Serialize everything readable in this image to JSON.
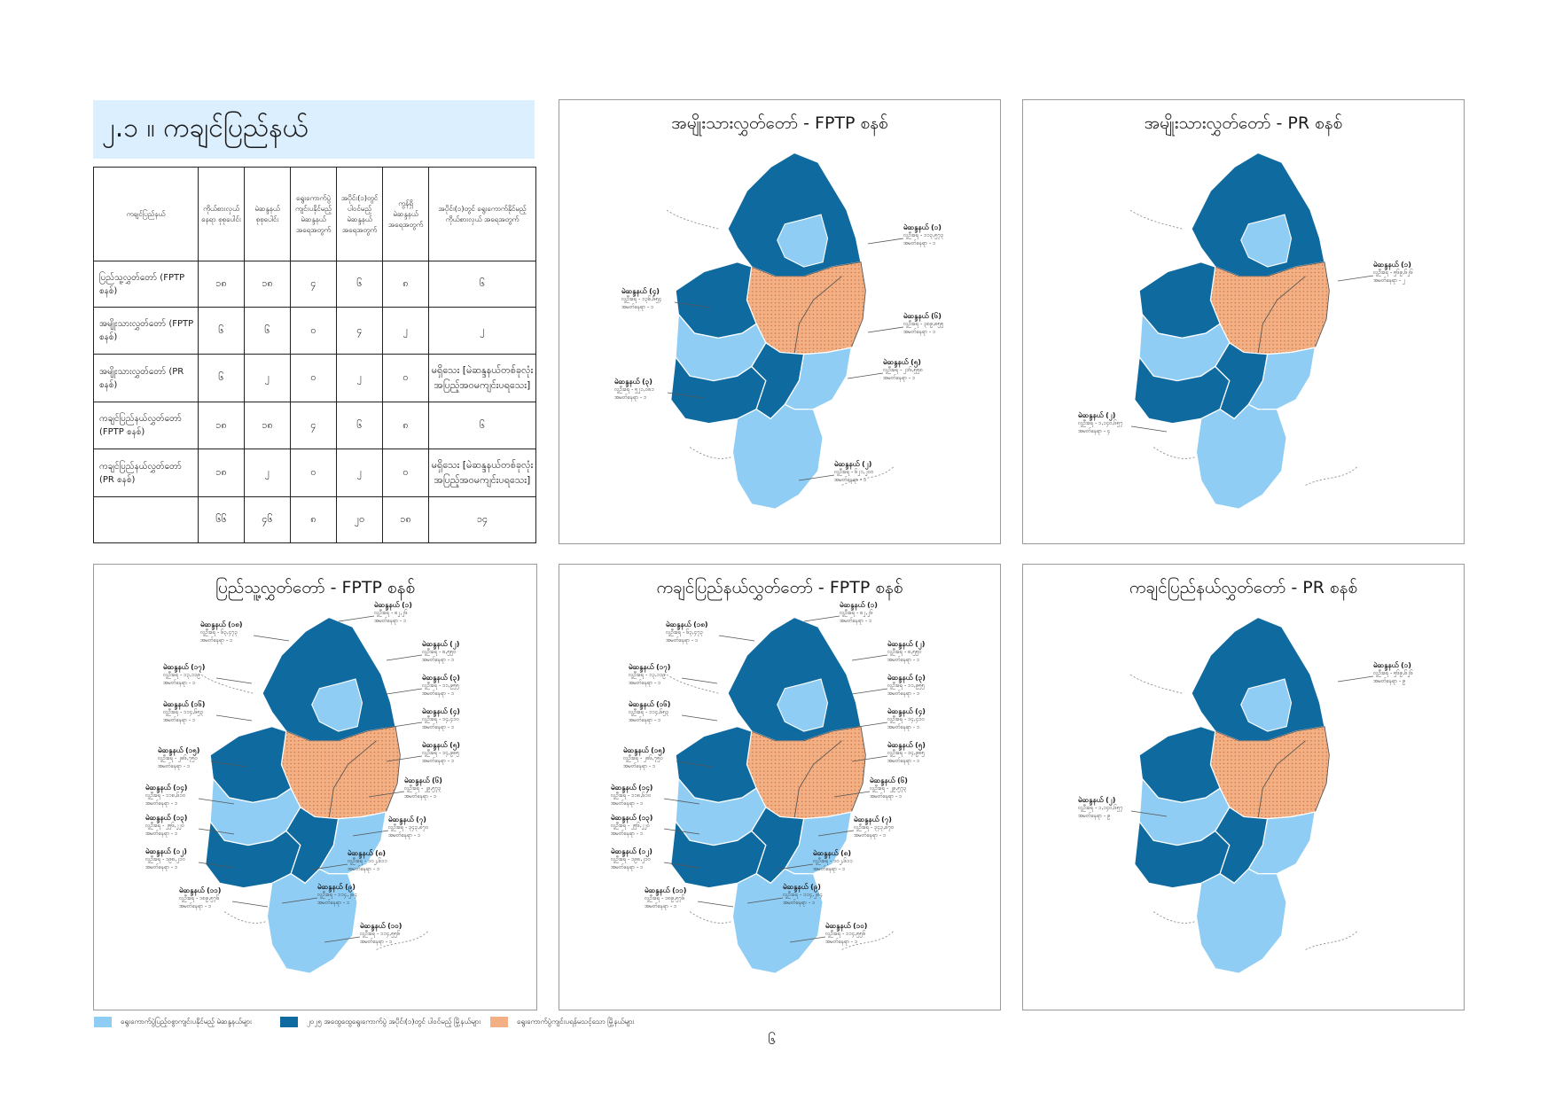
{
  "header": {
    "title": "၂.၁ ။ ကချင်ပြည်နယ်"
  },
  "table": {
    "columns": [
      "ကချင်ပြည်နယ်",
      "ကိုယ်စားလှယ် နေရာ စုစုပေါင်း",
      "မဲဆန္ဒနယ် စုစုပေါင်း",
      "ရွေးကောက်ပွဲ ကျင်းပနိုင်မည့် မဲဆန္ဒနယ် အရေအတွက်",
      "အပိုင်း(၁)တွင် ပါဝင်မည့် မဲဆန္ဒနယ် အရေအတွက်",
      "ကွန်ရှိ မဲဆန္ဒနယ် အရေအတွက်",
      "အပိုင်း(၁)တွင် ရွေးကောက်နိုင်မည့် ကိုယ်စားလှယ် အရေအတွက်"
    ],
    "rows": [
      {
        "label": "ပြည်သူ့လွှတ်တော် (FPTP စနစ်)",
        "cells": [
          "၁၈",
          "၁၈",
          "၄",
          "၆",
          "၈",
          "၆"
        ]
      },
      {
        "label": "အမျိုးသားလွှတ်တော် (FPTP စနစ်)",
        "cells": [
          "၆",
          "၆",
          "၀",
          "၄",
          "၂",
          "၂"
        ]
      },
      {
        "label": "အမျိုးသားလွှတ်တော် (PR စနစ်)",
        "cells": [
          "၆",
          "၂",
          "၀",
          "၂",
          "၀",
          "မရှိသေး [မဲဆန္ဒနယ်တစ်ခုလုံး အပြည့်အဝမကျင်းပရသေး]"
        ]
      },
      {
        "label": "ကချင်ပြည်နယ်လွှတ်တော် (FPTP စနစ်)",
        "cells": [
          "၁၈",
          "၁၈",
          "၄",
          "၆",
          "၈",
          "၆"
        ]
      },
      {
        "label": "ကချင်ပြည်နယ်လွှတ်တော် (PR စနစ်)",
        "cells": [
          "၁၈",
          "၂",
          "၀",
          "၂",
          "၀",
          "မရှိသေး [မဲဆန္ဒနယ်တစ်ခုလုံး အပြည့်အဝမကျင်းပရသေး]"
        ]
      },
      {
        "label": "",
        "cells": [
          "၆၆",
          "၄၆",
          "၈",
          "၂၀",
          "၁၈",
          "၁၄"
        ]
      }
    ]
  },
  "colors": {
    "light": "#8fcdf4",
    "dark": "#0f6aa0",
    "orange": "#f2b084",
    "title_bg": "#dcefff"
  },
  "panels": [
    {
      "title": "အမျိုးသားလွှတ်တော် - FPTP စနစ်",
      "labels": [
        {
          "name": "မဲဆန္ဒနယ် (၁)",
          "l2": "လူဦးရေ - ၁၁၃,၅၇၃",
          "l3": "အမတ်နေရာ - ၁"
        },
        {
          "name": "မဲဆန္ဒနယ် (၄)",
          "l2": "လူဦးရေ - ၁၃၆,၆၅၄",
          "l3": "အမတ်နေရာ - ၁"
        },
        {
          "name": "မဲဆန္ဒနယ် (၆)",
          "l2": "လူဦးရေ - ၃၈၉,၈၅၅",
          "l3": "အမတ်နေရာ - ၁"
        },
        {
          "name": "မဲဆန္ဒနယ် (၅)",
          "l2": "လူဦးရေ - ၂၁၆,၅၅၈",
          "l3": "အမတ်နေရာ - ၁"
        },
        {
          "name": "မဲဆန္ဒနယ် (၃)",
          "l2": "လူဦးရေ - ၅၂၁,၀၈၁",
          "l3": "အမတ်နေရာ - ၁"
        },
        {
          "name": "မဲဆန္ဒနယ် (၂)",
          "l2": "လူဦးရေ - ၆၂၁,၂၀၀",
          "l3": "အမတ်နေရာ - ၁"
        }
      ]
    },
    {
      "title": "အမျိုးသားလွှတ်တော် - PR စနစ်",
      "labels": [
        {
          "name": "မဲဆန္ဒနယ် (၁)",
          "l2": "လူဦးရေ - ၅၆၉,၆၂၆",
          "l3": "အမတ်နေရာ - ၂"
        },
        {
          "name": "မဲဆန္ဒနယ် (၂)",
          "l2": "လူဦးရေ - ၁,၁၄၀,၆၅၇",
          "l3": "အမတ်နေရာ - ၄"
        }
      ]
    },
    {
      "title": "ပြည်သူ့လွှတ်တော် - FPTP စနစ်",
      "labels": [
        {
          "name": "မဲဆန္ဒနယ် (၁)",
          "l2": "လူဦးရေ - ၈၂,၂၆",
          "l3": "အမတ်နေရာ - ၁"
        },
        {
          "name": "မဲဆန္ဒနယ် (၁၈)",
          "l2": "လူဦးရေ - ၆၃,၄၇၃",
          "l3": "အမတ်နေရာ - ၁"
        },
        {
          "name": "မဲဆန္ဒနယ် (၂)",
          "l2": "လူဦးရေ - ၈,၅၅၀",
          "l3": "အမတ်နေရာ - ၁"
        },
        {
          "name": "မဲဆန္ဒနယ် (၁၇)",
          "l2": "လူဦးရေ - ၁၃,၁၁၉",
          "l3": "အမတ်နေရာ - ၁"
        },
        {
          "name": "မဲဆန္ဒနယ် (၃)",
          "l2": "လူဦးရေ - ၁၁,၉၅၅",
          "l3": "အမတ်နေရာ - ၁"
        },
        {
          "name": "မဲဆန္ဒနယ် (၁၆)",
          "l2": "လူဦးရေ - ၁၁၄,၆၅၃",
          "l3": "အမတ်နေရာ - ၁"
        },
        {
          "name": "မဲဆန္ဒနယ် (၄)",
          "l2": "လူဦးရေ - ၁၄,၄၁၀",
          "l3": "အမတ်နေရာ - ၁"
        },
        {
          "name": "မဲဆန္ဒနယ် (၁၅)",
          "l2": "လူဦးရေ - ၂၈၆,၇၅၀",
          "l3": "အမတ်နေရာ - ၁"
        },
        {
          "name": "မဲဆန္ဒနယ် (၅)",
          "l2": "လူဦးရေ - ၁၄,၉၈၅",
          "l3": "အမတ်နေရာ - ၁"
        },
        {
          "name": "မဲဆန္ဒနယ် (၁၄)",
          "l2": "လူဦးရေ - ၁၁၈,၆၁၀",
          "l3": "အမတ်နေရာ - ၁"
        },
        {
          "name": "မဲဆန္ဒနယ် (၆)",
          "l2": "လူဦးရေ - ၂၉,၅၇၃",
          "l3": "အမတ်နေရာ - ၁"
        },
        {
          "name": "မဲဆန္ဒနယ် (၁၃)",
          "l2": "လူဦးရေ - ၂၅၆,၂၂၀",
          "l3": "အမတ်နေရာ - ၁"
        },
        {
          "name": "မဲဆန္ဒနယ် (၇)",
          "l2": "လူဦးရေ - ၃၄၃,၈၇၀",
          "l3": "အမတ်နေရာ - ၁"
        },
        {
          "name": "မဲဆန္ဒနယ် (၁၂)",
          "l2": "လူဦးရေ - ၁၉၈,၂၁၀",
          "l3": "အမတ်နေရာ - ၁"
        },
        {
          "name": "မဲဆန္ဒနယ် (၈)",
          "l2": "လူဦးရေ - ၁၀၂,၆၁၁",
          "l3": "အမတ်နေရာ - ၁"
        },
        {
          "name": "မဲဆန္ဒနယ် (၉)",
          "l2": "လူဦးရေ - ၁၁၄,၂၈၄",
          "l3": "အမတ်နေရာ - ၁"
        },
        {
          "name": "မဲဆန္ဒနယ် (၁၁)",
          "l2": "လူဦးရေ - ၁၈၉,၅၇၆",
          "l3": "အမတ်နေရာ - ၁"
        },
        {
          "name": "မဲဆန္ဒနယ် (၁၀)",
          "l2": "လူဦးရေ - ၁၁၄,၅၅၆",
          "l3": "အမတ်နေရာ - ၁"
        }
      ]
    },
    {
      "title": "ကချင်ပြည်နယ်လွှတ်တော် - FPTP စနစ်",
      "labels": [
        {
          "name": "မဲဆန္ဒနယ် (၁)",
          "l2": "လူဦးရေ - ၈၂,၂၆",
          "l3": "အမတ်နေရာ - ၁"
        },
        {
          "name": "မဲဆန္ဒနယ် (၁၈)",
          "l2": "လူဦးရေ - ၆၃,၄၇၃",
          "l3": "အမတ်နေရာ - ၁"
        },
        {
          "name": "မဲဆန္ဒနယ် (၂)",
          "l2": "လူဦးရေ - ၈,၅၅၀",
          "l3": "အမတ်နေရာ - ၁"
        },
        {
          "name": "မဲဆန္ဒနယ် (၁၇)",
          "l2": "လူဦးရေ - ၁၃,၁၁၉",
          "l3": "အမတ်နေရာ - ၁"
        },
        {
          "name": "မဲဆန္ဒနယ် (၃)",
          "l2": "လူဦးရေ - ၁၁,၉၅၅",
          "l3": "အမတ်နေရာ - ၁"
        },
        {
          "name": "မဲဆန္ဒနယ် (၁၆)",
          "l2": "လူဦးရေ - ၁၁၄,၆၅၃",
          "l3": "အမတ်နေရာ - ၁"
        },
        {
          "name": "မဲဆန္ဒနယ် (၄)",
          "l2": "လူဦးရေ - ၁၄,၄၁၀",
          "l3": "အမတ်နေရာ - ၁"
        },
        {
          "name": "မဲဆန္ဒနယ် (၁၅)",
          "l2": "လူဦးရေ - ၂၈၆,၇၅၀",
          "l3": "အမတ်နေရာ - ၁"
        },
        {
          "name": "မဲဆန္ဒနယ် (၅)",
          "l2": "လူဦးရေ - ၁၄,၉၈၅",
          "l3": "အမတ်နေရာ - ၁"
        },
        {
          "name": "မဲဆန္ဒနယ် (၁၄)",
          "l2": "လူဦးရေ - ၁၁၈,၆၁၀",
          "l3": "အမတ်နေရာ - ၁"
        },
        {
          "name": "မဲဆန္ဒနယ် (၆)",
          "l2": "လူဦးရေ - ၂၉,၅၇၃",
          "l3": "အမတ်နေရာ - ၁"
        },
        {
          "name": "မဲဆန္ဒနယ် (၁၃)",
          "l2": "လူဦးရေ - ၂၅၆,၂၂၀",
          "l3": "အမတ်နေရာ - ၁"
        },
        {
          "name": "မဲဆန္ဒနယ် (၇)",
          "l2": "လူဦးရေ - ၃၄၃,၈၇၀",
          "l3": "အမတ်နေရာ - ၁"
        },
        {
          "name": "မဲဆန္ဒနယ် (၁၂)",
          "l2": "လူဦးရေ - ၁၉၈,၂၁၀",
          "l3": "အမတ်နေရာ - ၁"
        },
        {
          "name": "မဲဆန္ဒနယ် (၈)",
          "l2": "လူဦးရေ - ၁၀၂,၆၁၁",
          "l3": "အမတ်နေရာ - ၁"
        },
        {
          "name": "မဲဆန္ဒနယ် (၉)",
          "l2": "လူဦးရေ - ၁၁၄,၂၈၄",
          "l3": "အမတ်နေရာ - ၁"
        },
        {
          "name": "မဲဆန္ဒနယ် (၁၁)",
          "l2": "လူဦးရေ - ၁၈၉,၅၇၆",
          "l3": "အမတ်နေရာ - ၁"
        },
        {
          "name": "မဲဆန္ဒနယ် (၁၀)",
          "l2": "လူဦးရေ - ၁၁၄,၅၅၆",
          "l3": "အမတ်နေရာ - ၁"
        }
      ]
    },
    {
      "title": "ကချင်ပြည်နယ်လွှတ်တော် - PR စနစ်",
      "labels": [
        {
          "name": "မဲဆန္ဒနယ် (၁)",
          "l2": "လူဦးရေ - ၅၆၉,၆၂၆",
          "l3": "အမတ်နေရာ - ၉"
        },
        {
          "name": "မဲဆန္ဒနယ် (၂)",
          "l2": "လူဦးရေ - ၁,၁၄၀,၆၅၇",
          "l3": "အမတ်နေရာ - ၉"
        }
      ]
    }
  ],
  "legend": [
    {
      "label": "ရွေးကောက်ပွဲပြည့်ဝစွာကျင်းပနိုင်မည့် မဲဆန္ဒနယ်များ",
      "color": "#8fcdf4"
    },
    {
      "label": "၂၀၂၅ အထွေထွေရွေးကောက်ပွဲ အပိုင်း(၁)တွင် ပါဝင်မည့် မြို့နယ်များ",
      "color": "#0f6aa0"
    },
    {
      "label": "ရွေးကောက်ပွဲကျင်းပရန်မသင့်သော မြို့နယ်များ",
      "color": "#f2b084"
    }
  ],
  "page_number": "၆"
}
